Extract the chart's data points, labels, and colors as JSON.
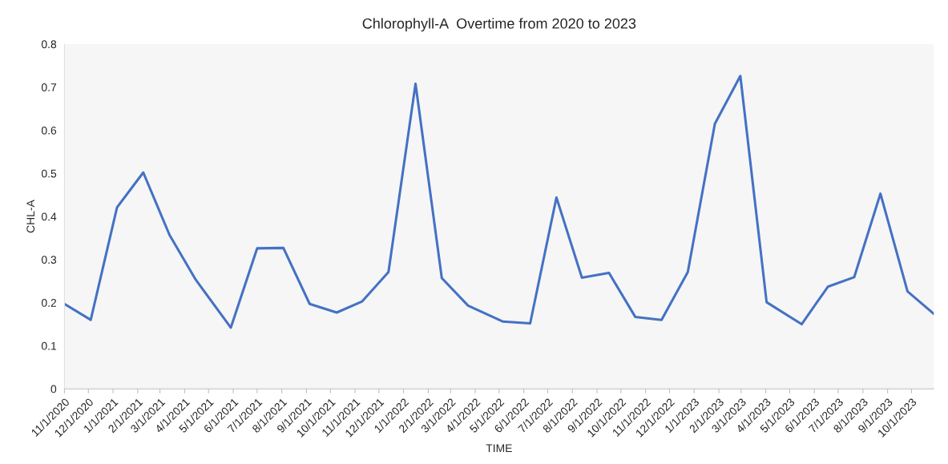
{
  "chart_data": {
    "type": "line",
    "title": "Chlorophyll-A  Overtime from 2020 to 2023",
    "xlabel": "TIME",
    "ylabel": "CHL-A",
    "x": [
      "2020-11-01",
      "2020-12-04",
      "2021-01-06",
      "2021-02-08",
      "2021-03-13",
      "2021-04-15",
      "2021-05-29",
      "2021-07-01",
      "2021-08-03",
      "2021-09-05",
      "2021-10-09",
      "2021-11-10",
      "2021-12-13",
      "2022-01-16",
      "2022-02-18",
      "2022-03-23",
      "2022-05-06",
      "2022-06-09",
      "2022-07-12",
      "2022-08-13",
      "2022-09-16",
      "2022-10-19",
      "2022-11-21",
      "2022-12-24",
      "2023-01-27",
      "2023-02-28",
      "2023-04-02",
      "2023-05-16",
      "2023-06-18",
      "2023-07-21",
      "2023-08-23",
      "2023-09-26",
      "2023-10-29"
    ],
    "series": [
      {
        "color": "#4472c4",
        "values": [
          0.197,
          0.16,
          0.421,
          0.502,
          0.357,
          0.253,
          0.142,
          0.326,
          0.327,
          0.197,
          0.177,
          0.203,
          0.271,
          0.708,
          0.257,
          0.193,
          0.156,
          0.152,
          0.444,
          0.258,
          0.269,
          0.167,
          0.16,
          0.271,
          0.615,
          0.726,
          0.201,
          0.15,
          0.237,
          0.259,
          0.453,
          0.226,
          0.174
        ]
      }
    ],
    "xlim": [
      "2020-11-01",
      "2023-10-29"
    ],
    "xticks": [
      {
        "value": "2020-11-01",
        "label": "11/1/2020"
      },
      {
        "value": "2020-12-01",
        "label": "12/1/2020"
      },
      {
        "value": "2021-01-01",
        "label": "1/1/2021"
      },
      {
        "value": "2021-02-01",
        "label": "2/1/2021"
      },
      {
        "value": "2021-03-01",
        "label": "3/1/2021"
      },
      {
        "value": "2021-04-01",
        "label": "4/1/2021"
      },
      {
        "value": "2021-05-01",
        "label": "5/1/2021"
      },
      {
        "value": "2021-06-01",
        "label": "6/1/2021"
      },
      {
        "value": "2021-07-01",
        "label": "7/1/2021"
      },
      {
        "value": "2021-08-01",
        "label": "8/1/2021"
      },
      {
        "value": "2021-09-01",
        "label": "9/1/2021"
      },
      {
        "value": "2021-10-01",
        "label": "10/1/2021"
      },
      {
        "value": "2021-11-01",
        "label": "11/1/2021"
      },
      {
        "value": "2021-12-01",
        "label": "12/1/2021"
      },
      {
        "value": "2022-01-01",
        "label": "1/1/2022"
      },
      {
        "value": "2022-02-01",
        "label": "2/1/2022"
      },
      {
        "value": "2022-03-01",
        "label": "3/1/2022"
      },
      {
        "value": "2022-04-01",
        "label": "4/1/2022"
      },
      {
        "value": "2022-05-01",
        "label": "5/1/2022"
      },
      {
        "value": "2022-06-01",
        "label": "6/1/2022"
      },
      {
        "value": "2022-07-01",
        "label": "7/1/2022"
      },
      {
        "value": "2022-08-01",
        "label": "8/1/2022"
      },
      {
        "value": "2022-09-01",
        "label": "9/1/2022"
      },
      {
        "value": "2022-10-01",
        "label": "10/1/2022"
      },
      {
        "value": "2022-11-01",
        "label": "11/1/2022"
      },
      {
        "value": "2022-12-01",
        "label": "12/1/2022"
      },
      {
        "value": "2023-01-01",
        "label": "1/1/2023"
      },
      {
        "value": "2023-02-01",
        "label": "2/1/2023"
      },
      {
        "value": "2023-03-01",
        "label": "3/1/2023"
      },
      {
        "value": "2023-04-01",
        "label": "4/1/2023"
      },
      {
        "value": "2023-05-01",
        "label": "5/1/2023"
      },
      {
        "value": "2023-06-01",
        "label": "6/1/2023"
      },
      {
        "value": "2023-07-01",
        "label": "7/1/2023"
      },
      {
        "value": "2023-08-01",
        "label": "8/1/2023"
      },
      {
        "value": "2023-09-01",
        "label": "9/1/2023"
      },
      {
        "value": "2023-10-01",
        "label": "10/1/2023"
      }
    ],
    "ylim": [
      0,
      0.8
    ],
    "yticks": [
      0,
      0.1,
      0.2,
      0.3,
      0.4,
      0.5,
      0.6,
      0.7,
      0.8
    ],
    "grid": false,
    "marker": "none",
    "line_style": "solid"
  }
}
